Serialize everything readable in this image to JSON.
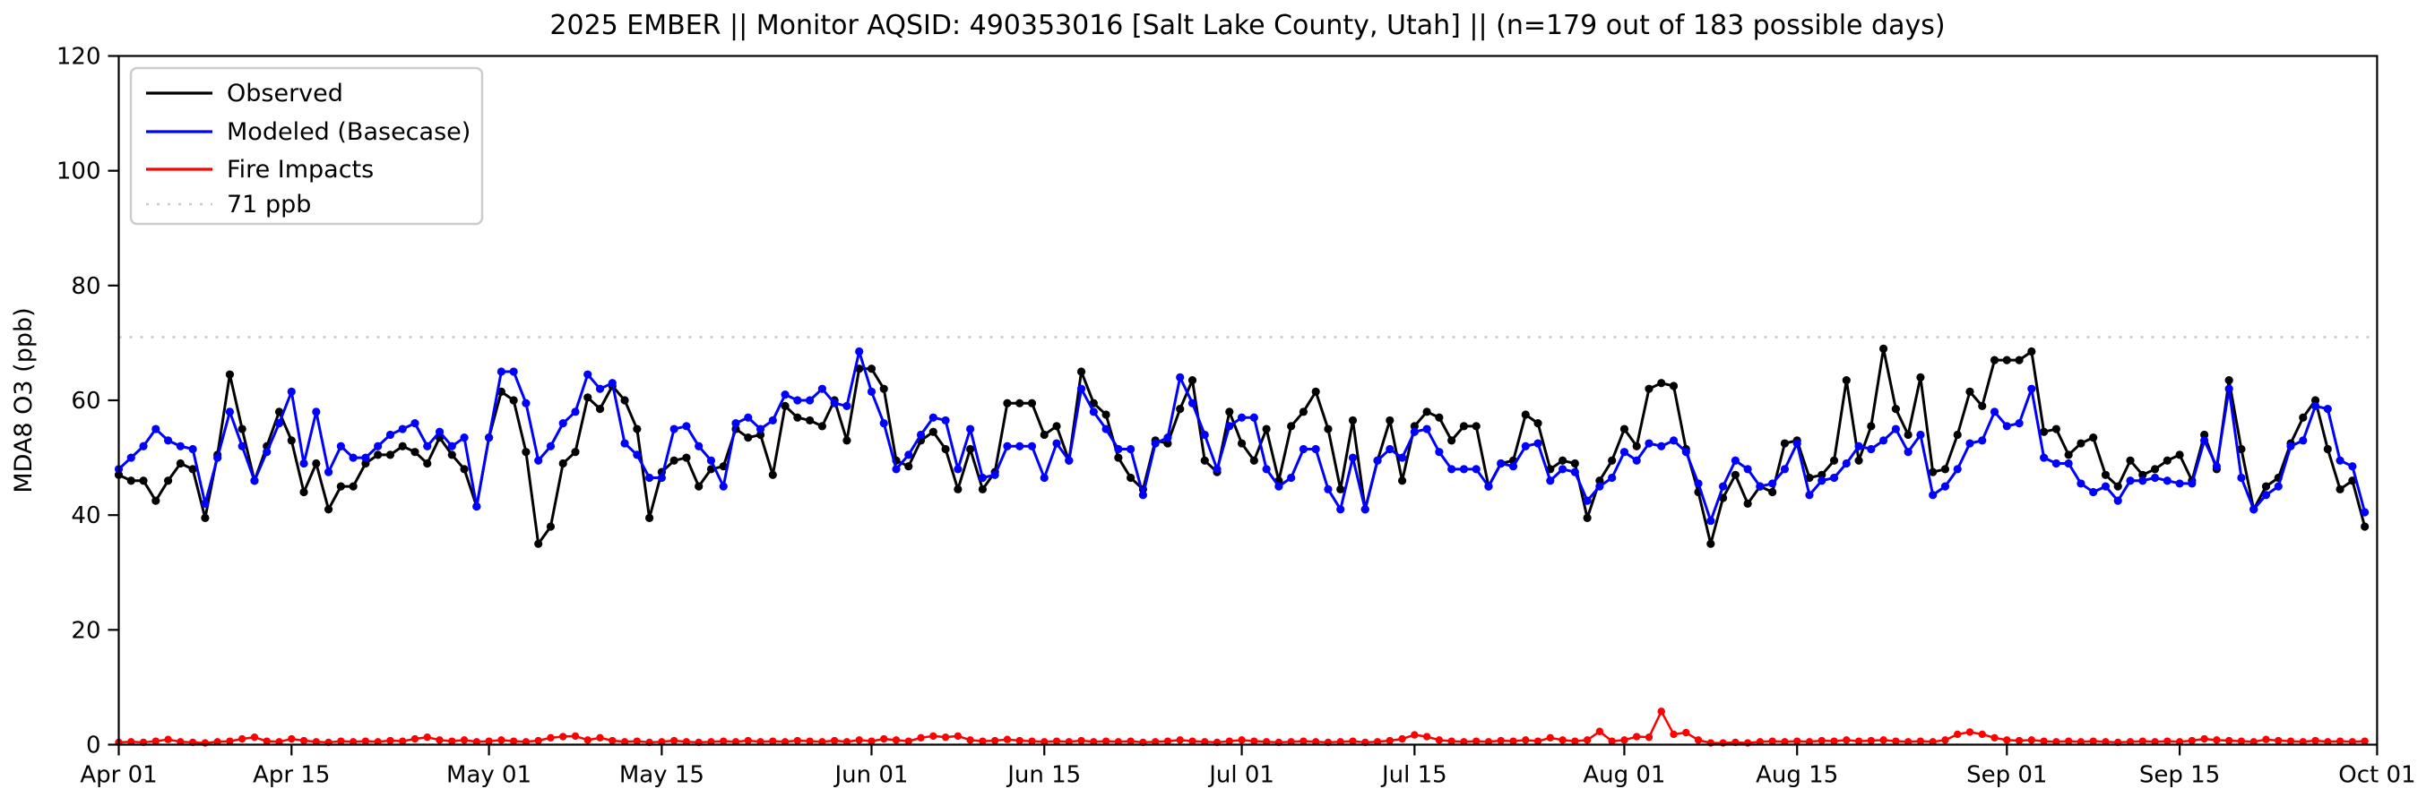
{
  "chart_data": {
    "type": "line",
    "title": "2025 EMBER || Monitor AQSID: 490353016 [Salt Lake County, Utah] || (n=179 out of 183 possible days)",
    "ylabel": "MDA8 O3 (ppb)",
    "xlabel": "",
    "ylim": [
      0,
      120
    ],
    "x_range_days": 183,
    "x_start": "Apr 01",
    "x_end": "Oct 01",
    "grid": false,
    "legend_position": "upper-left",
    "threshold": {
      "value": 71,
      "label": "71 ppb",
      "color": "#c9c9c9",
      "style": "dotted"
    },
    "y_ticks": [
      0,
      20,
      40,
      60,
      80,
      100,
      120
    ],
    "x_ticks": [
      {
        "label": "Apr 01",
        "day": 0
      },
      {
        "label": "Apr 15",
        "day": 14
      },
      {
        "label": "May 01",
        "day": 30
      },
      {
        "label": "May 15",
        "day": 44
      },
      {
        "label": "Jun 01",
        "day": 61
      },
      {
        "label": "Jun 15",
        "day": 75
      },
      {
        "label": "Jul 01",
        "day": 91
      },
      {
        "label": "Jul 15",
        "day": 105
      },
      {
        "label": "Aug 01",
        "day": 122
      },
      {
        "label": "Aug 15",
        "day": 136
      },
      {
        "label": "Sep 01",
        "day": 153
      },
      {
        "label": "Sep 15",
        "day": 167
      },
      {
        "label": "Oct 01",
        "day": 183
      }
    ],
    "series": [
      {
        "name": "Observed",
        "color": "#000000",
        "values": [
          47,
          46,
          46,
          42.5,
          46,
          49,
          48,
          39.5,
          50.5,
          64.5,
          55,
          46,
          52,
          58,
          53,
          44,
          49,
          41,
          45,
          45,
          49,
          50.5,
          50.5,
          52,
          51,
          49,
          53.5,
          50.5,
          48,
          41.5,
          53.5,
          61.5,
          60,
          51,
          35,
          38,
          49,
          51,
          60.5,
          58.5,
          62.5,
          60,
          55,
          39.5,
          47.5,
          49.5,
          50,
          45,
          48,
          48.5,
          55,
          53.5,
          54,
          47,
          59,
          57,
          56.5,
          55.5,
          60,
          53,
          65.5,
          65.5,
          62,
          49.5,
          48.5,
          53,
          54.5,
          51.5,
          44.5,
          51.5,
          44.5,
          47.5,
          59.5,
          59.5,
          59.5,
          54,
          55.5,
          49.5,
          65,
          59.5,
          57.5,
          50,
          46.5,
          44.5,
          53,
          52.5,
          58.5,
          63.5,
          49.5,
          47.5,
          58,
          52.5,
          49.5,
          55,
          46,
          55.5,
          58,
          61.5,
          55,
          44.5,
          56.5,
          41,
          49.5,
          56.5,
          46,
          55.5,
          58,
          57,
          53,
          55.5,
          55.5,
          45,
          49,
          49.5,
          57.5,
          56,
          48,
          49.5,
          49,
          39.5,
          46,
          49.5,
          55,
          52,
          62,
          63,
          62.5,
          51.5,
          44,
          35,
          43,
          47,
          42,
          45,
          44,
          52.5,
          53,
          46.5,
          47,
          49.5,
          63.5,
          49.5,
          55.5,
          69,
          58.5,
          54,
          64,
          47.5,
          48,
          54,
          61.5,
          59,
          67,
          67,
          67,
          68.5,
          54.5,
          55,
          50.5,
          52.5,
          53.5,
          47,
          45,
          49.5,
          47,
          48,
          49.5,
          50.5,
          46,
          54,
          48,
          63.5,
          51.5,
          41,
          45,
          46.5,
          52.5,
          57,
          60,
          51.5,
          44.5,
          46,
          38
        ]
      },
      {
        "name": "Modeled (Basecase)",
        "color": "#0000ff",
        "values": [
          48,
          50,
          52,
          55,
          53,
          52,
          51.5,
          42,
          50,
          58,
          52,
          46,
          51,
          56,
          61.5,
          49,
          58,
          47.5,
          52,
          50,
          50,
          52,
          54,
          55,
          56,
          52,
          54.5,
          52,
          53.5,
          41.5,
          53.5,
          65,
          65,
          59.5,
          49.5,
          52,
          56,
          58,
          64.5,
          62,
          63,
          52.5,
          50.5,
          46.5,
          46.5,
          55,
          55.5,
          52,
          49.5,
          45,
          56,
          57,
          55,
          56.5,
          61,
          60,
          60,
          62,
          59.5,
          59,
          68.5,
          61.5,
          56,
          48,
          50.5,
          54,
          57,
          56.5,
          48,
          55,
          46.5,
          47,
          52,
          52,
          52,
          46.5,
          52.5,
          49.5,
          62,
          58,
          55,
          51.5,
          51.5,
          43.5,
          52.5,
          53.5,
          64,
          59.5,
          54,
          48,
          55.5,
          57,
          57,
          48,
          45,
          46.5,
          51.5,
          51.5,
          44.5,
          41,
          50,
          41,
          49.5,
          51.5,
          50,
          54.5,
          55,
          51,
          48,
          48,
          48,
          45,
          49,
          48.5,
          52,
          52.5,
          46,
          48,
          47.5,
          42.5,
          45,
          46.5,
          51,
          49.5,
          52.5,
          52,
          53,
          51,
          45.5,
          39,
          45,
          49.5,
          48,
          45,
          45.5,
          48,
          52.5,
          43.5,
          46,
          46.5,
          49,
          52,
          51.5,
          53,
          55,
          51,
          54,
          43.5,
          45,
          48,
          52.5,
          53,
          58,
          55.5,
          56,
          62,
          50,
          49,
          49,
          45.5,
          44,
          45,
          42.5,
          46,
          46,
          46.5,
          46,
          45.5,
          45.5,
          53,
          48.5,
          62,
          46.5,
          41,
          43.5,
          45,
          52,
          53,
          59,
          58.5,
          49.5,
          48.5,
          40.5
        ]
      },
      {
        "name": "Fire Impacts",
        "color": "#ff0000",
        "values": [
          0.4,
          0.5,
          0.4,
          0.6,
          0.9,
          0.5,
          0.4,
          0.3,
          0.5,
          0.6,
          1.0,
          1.3,
          0.6,
          0.5,
          1.0,
          0.7,
          0.5,
          0.4,
          0.6,
          0.5,
          0.6,
          0.5,
          0.7,
          0.6,
          1.0,
          1.3,
          0.8,
          0.6,
          0.8,
          0.5,
          0.6,
          0.8,
          0.6,
          0.5,
          0.7,
          1.2,
          1.4,
          1.5,
          0.8,
          1.2,
          0.7,
          0.5,
          0.6,
          0.4,
          0.5,
          0.7,
          0.5,
          0.4,
          0.5,
          0.6,
          0.5,
          0.7,
          0.5,
          0.6,
          0.5,
          0.7,
          0.6,
          0.5,
          0.7,
          0.5,
          0.8,
          0.6,
          1.0,
          0.8,
          0.6,
          1.2,
          1.5,
          1.3,
          1.5,
          0.8,
          0.6,
          0.7,
          0.9,
          0.7,
          0.6,
          0.5,
          0.6,
          0.5,
          0.7,
          0.5,
          0.6,
          0.5,
          0.6,
          0.4,
          0.5,
          0.6,
          0.8,
          0.6,
          0.5,
          0.4,
          0.6,
          0.8,
          0.6,
          0.5,
          0.4,
          0.5,
          0.6,
          0.5,
          0.4,
          0.5,
          0.6,
          0.4,
          0.5,
          0.7,
          1.0,
          1.7,
          1.4,
          0.8,
          0.6,
          0.5,
          0.6,
          0.5,
          0.7,
          0.6,
          0.8,
          0.6,
          1.2,
          0.8,
          0.6,
          0.8,
          2.3,
          0.6,
          0.8,
          1.4,
          1.3,
          5.8,
          1.8,
          2.1,
          0.8,
          0.3,
          0.3,
          0.4,
          0.3,
          0.5,
          0.6,
          0.5,
          0.6,
          0.5,
          0.7,
          0.6,
          0.8,
          0.6,
          0.7,
          0.8,
          0.6,
          0.5,
          0.6,
          0.5,
          0.8,
          1.8,
          2.2,
          1.8,
          1.2,
          0.8,
          0.7,
          0.8,
          0.6,
          0.5,
          0.6,
          0.5,
          0.6,
          0.5,
          0.4,
          0.5,
          0.6,
          0.5,
          0.6,
          0.5,
          0.7,
          1.0,
          0.8,
          0.7,
          0.6,
          0.5,
          0.9,
          0.7,
          0.6,
          0.5,
          0.7,
          0.5,
          0.6,
          0.5,
          0.6
        ]
      }
    ],
    "legend": [
      {
        "label": "Observed",
        "color": "#000000",
        "style": "solid"
      },
      {
        "label": "Modeled (Basecase)",
        "color": "#0000ff",
        "style": "solid"
      },
      {
        "label": "Fire Impacts",
        "color": "#ff0000",
        "style": "solid"
      },
      {
        "label": "71 ppb",
        "color": "#c9c9c9",
        "style": "dotted"
      }
    ]
  },
  "layout_colors": {
    "background": "#ffffff",
    "axis": "#000000",
    "legend_border": "#cccccc"
  }
}
